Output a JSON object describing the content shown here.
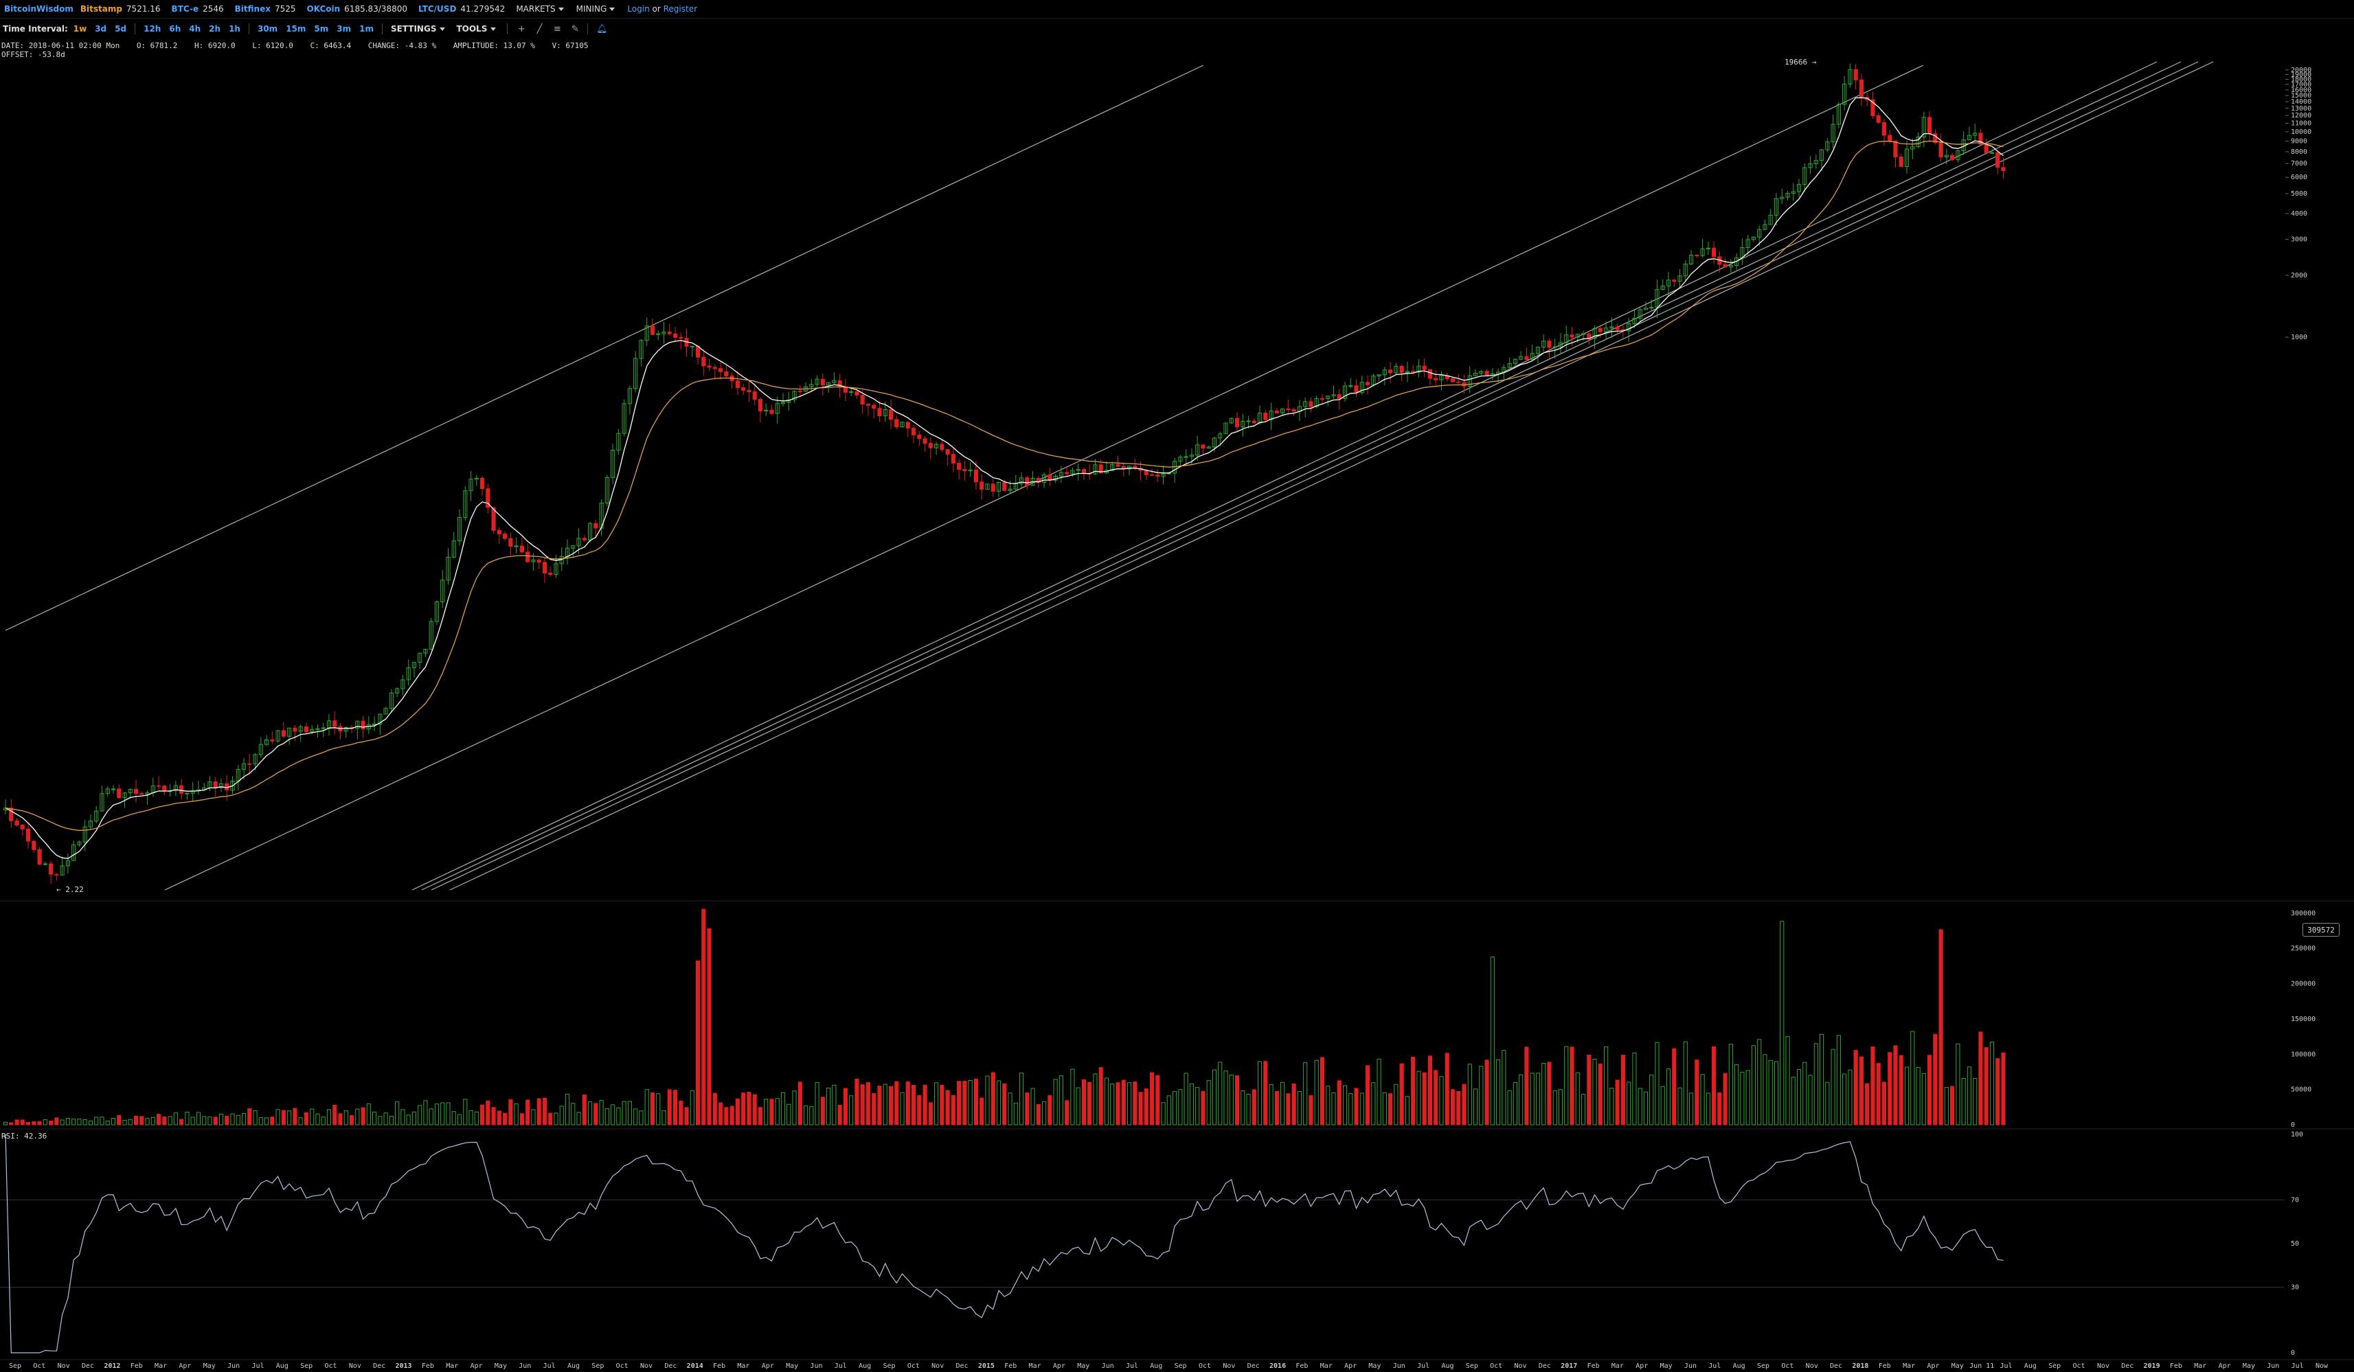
{
  "header": {
    "brand": "BitcoinWisdom",
    "tickers": [
      {
        "name": "Bitstamp",
        "price": "7521.16",
        "color": "#f0a020"
      },
      {
        "name": "BTC-e",
        "price": "2546",
        "color": "#4aa3ff"
      },
      {
        "name": "Bitfinex",
        "price": "7525",
        "color": "#4aa3ff"
      },
      {
        "name": "OKCoin",
        "price": "6185.83/38800",
        "color": "#4aa3ff"
      },
      {
        "name": "LTC/USD",
        "price": "41.279542",
        "color": "#4aa3ff"
      }
    ],
    "markets_label": "MARKETS",
    "mining_label": "MINING",
    "login_label": "Login",
    "or_label": "or",
    "register_label": "Register"
  },
  "toolbar": {
    "time_interval_label": "Time Interval:",
    "intervals_group1": [
      "1w",
      "3d",
      "5d"
    ],
    "intervals_group2": [
      "12h",
      "6h",
      "4h",
      "2h",
      "1h"
    ],
    "intervals_group3": [
      "30m",
      "15m",
      "5m",
      "3m",
      "1m"
    ],
    "active_interval": "1w",
    "settings_label": "SETTINGS",
    "tools_label": "TOOLS"
  },
  "ohlc": {
    "date": "DATE: 2018-06-11 02:00 Mon",
    "open": "O: 6781.2",
    "high": "H: 6920.0",
    "low": "L: 6120.0",
    "close": "C: 6463.4",
    "change": "CHANGE: -4.83 %",
    "amplitude": "AMPLITUDE: 13.07 %",
    "volume": "V: 67105",
    "offset": "OFFSET: -53.8d"
  },
  "price_marks": {
    "high": "19666",
    "low": "2.22"
  },
  "price_axis_labels": [
    "20000",
    "19000",
    "18000",
    "17000",
    "16000",
    "15000",
    "14000",
    "13000",
    "12000",
    "11000",
    "10000",
    "9000",
    "8000",
    "7000",
    "6000",
    "5000",
    "4000",
    "3000",
    "2000",
    "1000"
  ],
  "volume_axis_labels": [
    "300000",
    "250000",
    "200000",
    "150000",
    "100000",
    "50000",
    "0"
  ],
  "volume_badge": "309572",
  "rsi": {
    "label": "RSI: 42.36",
    "axis_labels": [
      "100",
      "70",
      "50",
      "30",
      "0"
    ]
  },
  "time_axis_labels": [
    "Sep",
    "Oct",
    "Nov",
    "Dec",
    "2012",
    "Feb",
    "Mar",
    "Apr",
    "May",
    "Jun",
    "Jul",
    "Aug",
    "Sep",
    "Oct",
    "Nov",
    "Dec",
    "2013",
    "Feb",
    "Mar",
    "Apr",
    "May",
    "Jun",
    "Jul",
    "Aug",
    "Sep",
    "Oct",
    "Nov",
    "Dec",
    "2014",
    "Feb",
    "Mar",
    "Apr",
    "May",
    "Jun",
    "Jul",
    "Aug",
    "Sep",
    "Oct",
    "Nov",
    "Dec",
    "2015",
    "Feb",
    "Mar",
    "Apr",
    "May",
    "Jun",
    "Jul",
    "Aug",
    "Sep",
    "Oct",
    "Nov",
    "Dec",
    "2016",
    "Feb",
    "Mar",
    "Apr",
    "May",
    "Jun",
    "Jul",
    "Aug",
    "Sep",
    "Oct",
    "Nov",
    "Dec",
    "2017",
    "Feb",
    "Mar",
    "Apr",
    "May",
    "Jun",
    "Jul",
    "Aug",
    "Sep",
    "Oct",
    "Nov",
    "Dec",
    "2018",
    "Feb",
    "Mar",
    "Apr",
    "May",
    "Jun 11",
    "Jul",
    "Aug",
    "Sep",
    "Oct",
    "Nov",
    "Dec",
    "2019",
    "Feb",
    "Mar",
    "Apr",
    "May",
    "Jun",
    "Jul",
    "Now"
  ],
  "colors": {
    "up": "#2ea82e",
    "down": "#e02020",
    "ema_fast": "#ffffff",
    "ema_slow": "#e0a040",
    "rsi_line": "#b0c4de",
    "channel": "#cfcfcf"
  },
  "chart_data": {
    "type": "candlestick",
    "scale": "log",
    "interval": "1w",
    "price_range": [
      2.22,
      19666
    ],
    "anchors": [
      {
        "t": "2011-09",
        "price": 5.0
      },
      {
        "t": "2011-11",
        "price": 2.22
      },
      {
        "t": "2012-01",
        "price": 6
      },
      {
        "t": "2012-06",
        "price": 6.5
      },
      {
        "t": "2012-08",
        "price": 12
      },
      {
        "t": "2012-12",
        "price": 13.5
      },
      {
        "t": "2013-02",
        "price": 30
      },
      {
        "t": "2013-04",
        "price": 230
      },
      {
        "t": "2013-05",
        "price": 110
      },
      {
        "t": "2013-07",
        "price": 70
      },
      {
        "t": "2013-09",
        "price": 125
      },
      {
        "t": "2013-11",
        "price": 1160
      },
      {
        "t": "2014-01",
        "price": 850
      },
      {
        "t": "2014-04",
        "price": 430
      },
      {
        "t": "2014-06",
        "price": 640
      },
      {
        "t": "2014-10",
        "price": 350
      },
      {
        "t": "2015-01",
        "price": 180
      },
      {
        "t": "2015-06",
        "price": 240
      },
      {
        "t": "2015-08",
        "price": 210
      },
      {
        "t": "2015-11",
        "price": 390
      },
      {
        "t": "2016-01",
        "price": 420
      },
      {
        "t": "2016-06",
        "price": 720
      },
      {
        "t": "2016-08",
        "price": 580
      },
      {
        "t": "2016-12",
        "price": 960
      },
      {
        "t": "2017-03",
        "price": 1150
      },
      {
        "t": "2017-06",
        "price": 2700
      },
      {
        "t": "2017-07",
        "price": 2100
      },
      {
        "t": "2017-09",
        "price": 4500
      },
      {
        "t": "2017-11",
        "price": 8000
      },
      {
        "t": "2017-12",
        "price": 19666
      },
      {
        "t": "2018-02",
        "price": 7000
      },
      {
        "t": "2018-03",
        "price": 11000
      },
      {
        "t": "2018-04",
        "price": 7000
      },
      {
        "t": "2018-05",
        "price": 9700
      },
      {
        "t": "2018-06-11",
        "price": 6463.4
      }
    ],
    "rsi_levels": [
      30,
      50,
      70
    ],
    "rsi_last": 42.36,
    "volume_max": 309572
  }
}
